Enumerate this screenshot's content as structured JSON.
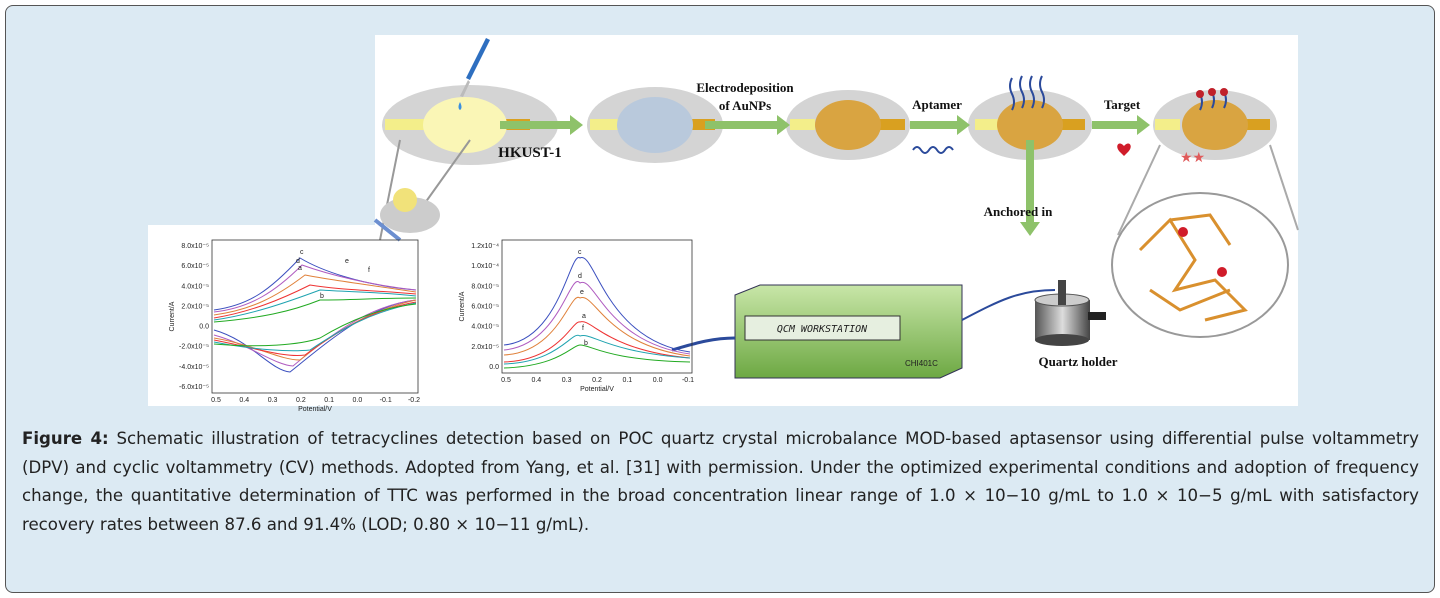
{
  "figure": {
    "schematic": {
      "steps": [
        "HKUST-1",
        "Electrodeposition",
        "of AuNPs",
        "Aptamer",
        "Target",
        "Anchored in"
      ],
      "workstation": "QCM WORKSTATION",
      "model": "CHI401C",
      "holder": "Quartz holder"
    },
    "cv_plot": {
      "ylabel": "Current/A",
      "xlabel": "Potential/V",
      "yticks": [
        "8.0x10⁻⁵",
        "6.0x10⁻⁵",
        "4.0x10⁻⁵",
        "2.0x10⁻⁵",
        "0.0",
        "-2.0x10⁻⁵",
        "-4.0x10⁻⁵",
        "-6.0x10⁻⁵"
      ],
      "xticks": [
        "0.5",
        "0.4",
        "0.3",
        "0.2",
        "0.1",
        "0.0",
        "-0.1",
        "-0.2"
      ],
      "curve_labels": [
        "c",
        "d",
        "a",
        "e",
        "f",
        "b"
      ]
    },
    "dpv_plot": {
      "ylabel": "Current/A",
      "xlabel": "Potential/V",
      "yticks": [
        "1.2x10⁻⁴",
        "1.0x10⁻⁴",
        "8.0x10⁻⁵",
        "6.0x10⁻⁵",
        "4.0x10⁻⁵",
        "2.0x10⁻⁵",
        "0.0"
      ],
      "xticks": [
        "0.5",
        "0.4",
        "0.3",
        "0.2",
        "0.1",
        "0.0",
        "-0.1"
      ],
      "curve_labels": [
        "c",
        "d",
        "e",
        "a",
        "f",
        "b"
      ]
    },
    "caption": {
      "label": "Figure 4:",
      "text": "Schematic illustration of tetracyclines detection based on POC quartz crystal microbalance MOD-based aptasensor using differential pulse voltammetry (DPV) and cyclic voltammetry (CV) methods. Adopted from Yang, et al. [31] with permission. Under the optimized experimental conditions and adoption of frequency change, the quantitative determination of TTC was performed in the broad concentration linear range of 1.0 × 10−10 g/mL to 1.0 × 10−5 g/mL with satisfactory recovery rates between 87.6 and 91.4% (LOD; 0.80 × 10−11 g/mL)."
    }
  }
}
